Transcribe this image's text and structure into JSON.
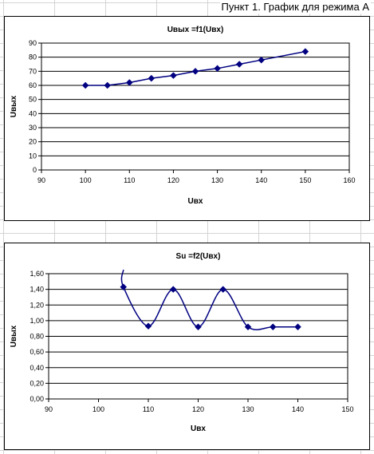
{
  "sheet": {
    "header": "Пункт 1. График для режима А"
  },
  "chart_data": [
    {
      "type": "line",
      "title": "Uвых =f1(Uвх)",
      "xlabel": "Uвх",
      "ylabel": "Uвых",
      "xlim": [
        90,
        160
      ],
      "ylim": [
        0,
        90
      ],
      "xticks": [
        90,
        100,
        110,
        120,
        130,
        140,
        150,
        160
      ],
      "yticks": [
        0,
        10,
        20,
        30,
        40,
        50,
        60,
        70,
        80,
        90
      ],
      "ytick_format": "int",
      "smooth": false,
      "grid": "horizontal",
      "legend": "none",
      "line_color": "#000080",
      "marker": "diamond",
      "series": [
        {
          "x": [
            100,
            105,
            110,
            115,
            120,
            125,
            130,
            135,
            140,
            150
          ],
          "y": [
            60,
            60,
            62,
            65,
            67,
            70,
            72,
            75,
            78,
            84
          ]
        }
      ]
    },
    {
      "type": "line",
      "title": "Su =f2(Uвх)",
      "xlabel": "Uвх",
      "ylabel": "Uвых",
      "xlim": [
        90,
        150
      ],
      "ylim": [
        0,
        1.6
      ],
      "xticks": [
        90,
        100,
        110,
        120,
        130,
        140,
        150
      ],
      "yticks": [
        0,
        0.2,
        0.4,
        0.6,
        0.8,
        1.0,
        1.2,
        1.4,
        1.6
      ],
      "ytick_format": "comma2",
      "smooth": true,
      "grid": "horizontal",
      "legend": "none",
      "line_color": "#000080",
      "marker": "diamond",
      "series": [
        {
          "x": [
            105,
            110,
            115,
            120,
            125,
            130,
            135,
            140
          ],
          "y": [
            1.43,
            0.93,
            1.4,
            0.92,
            1.4,
            0.92,
            0.92,
            0.92
          ]
        }
      ],
      "curve_start": {
        "x": 105,
        "y": 1.65
      }
    }
  ]
}
